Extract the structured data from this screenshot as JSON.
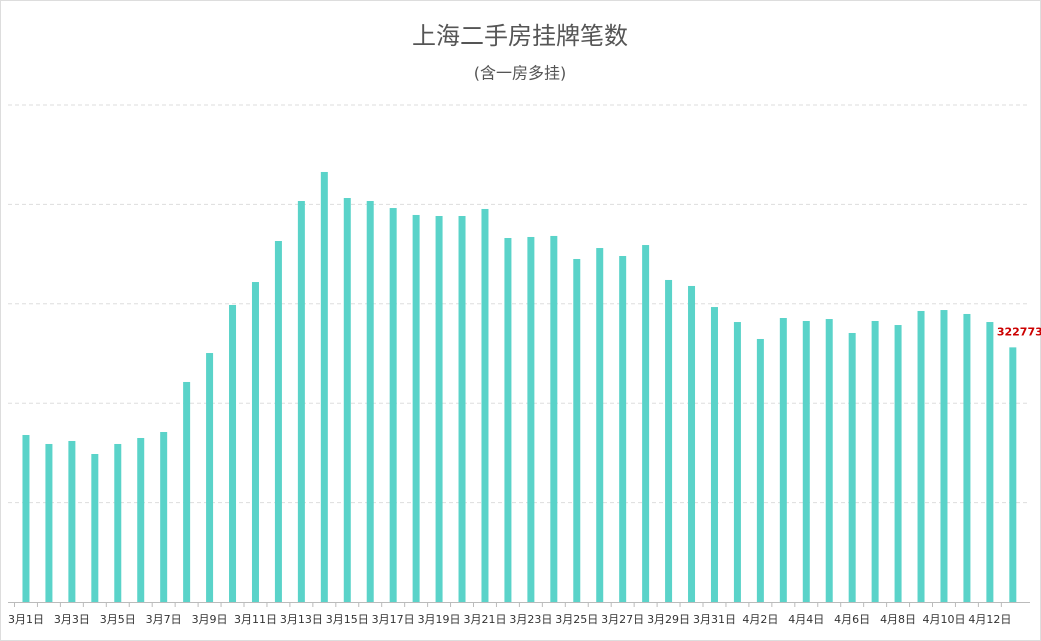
{
  "chart_data": {
    "type": "bar",
    "title": "上海二手房挂牌笔数",
    "subtitle": "(含一房多挂)",
    "categories": [
      "3月1日",
      null,
      "3月3日",
      null,
      "3月5日",
      null,
      "3月7日",
      null,
      "3月9日",
      null,
      "3月11日",
      null,
      "3月13日",
      null,
      "3月15日",
      null,
      "3月17日",
      null,
      "3月19日",
      null,
      "3月21日",
      null,
      "3月23日",
      null,
      "3月25日",
      null,
      "3月27日",
      null,
      "3月29日",
      null,
      "3月31日",
      null,
      "4月2日",
      null,
      "4月4日",
      null,
      "4月6日",
      null,
      "4月8日",
      null,
      "4月10日",
      null,
      "4月12日",
      null
    ],
    "values": [
      211700,
      200300,
      204100,
      187600,
      200300,
      207900,
      215500,
      278900,
      315600,
      376500,
      405600,
      457600,
      508300,
      545100,
      512100,
      508300,
      499400,
      490600,
      489300,
      489300,
      498200,
      461400,
      462700,
      464000,
      434800,
      448700,
      438600,
      452500,
      408200,
      400600,
      373900,
      354900,
      333400,
      360000,
      356200,
      358700,
      341000,
      356200,
      351100,
      368900,
      370100,
      365100,
      354900,
      322773
    ],
    "color": "#5ad3c9",
    "ylim": [
      0,
      630000
    ],
    "yticks": [
      126000,
      252000,
      378000,
      504000,
      630000
    ],
    "grid": true
  }
}
